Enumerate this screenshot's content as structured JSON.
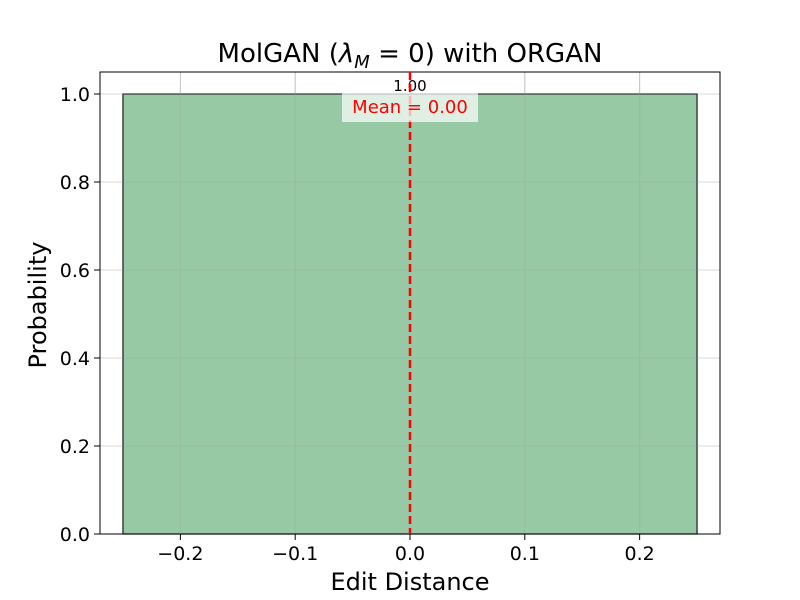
{
  "chart_data": {
    "type": "bar",
    "title_prefix": "MolGAN (",
    "title_lambda": "λ",
    "title_subscript": "M",
    "title_eq": " = 0",
    "title_suffix": ") with ORGAN",
    "xlabel": "Edit Distance",
    "ylabel": "Probability",
    "xlim": [
      -0.27,
      0.27
    ],
    "ylim": [
      0,
      1.05
    ],
    "xticks": [
      -0.2,
      -0.1,
      0.0,
      0.1,
      0.2
    ],
    "xtick_labels": [
      "−0.2",
      "−0.1",
      "0.0",
      "0.1",
      "0.2"
    ],
    "yticks": [
      0.0,
      0.2,
      0.4,
      0.6,
      0.8,
      1.0
    ],
    "ytick_labels": [
      "0.0",
      "0.2",
      "0.4",
      "0.6",
      "0.8",
      "1.0"
    ],
    "bars": [
      {
        "x_start": -0.25,
        "x_end": 0.25,
        "value": 1.0,
        "label": "1.00"
      }
    ],
    "mean": {
      "value": 0.0,
      "label": "Mean = 0.00"
    },
    "grid": true,
    "colors": {
      "bar_fill": "#86c095",
      "bar_edge": "#1a1a1a",
      "mean_line": "#ff0000",
      "grid": "#b0b0b0"
    }
  }
}
